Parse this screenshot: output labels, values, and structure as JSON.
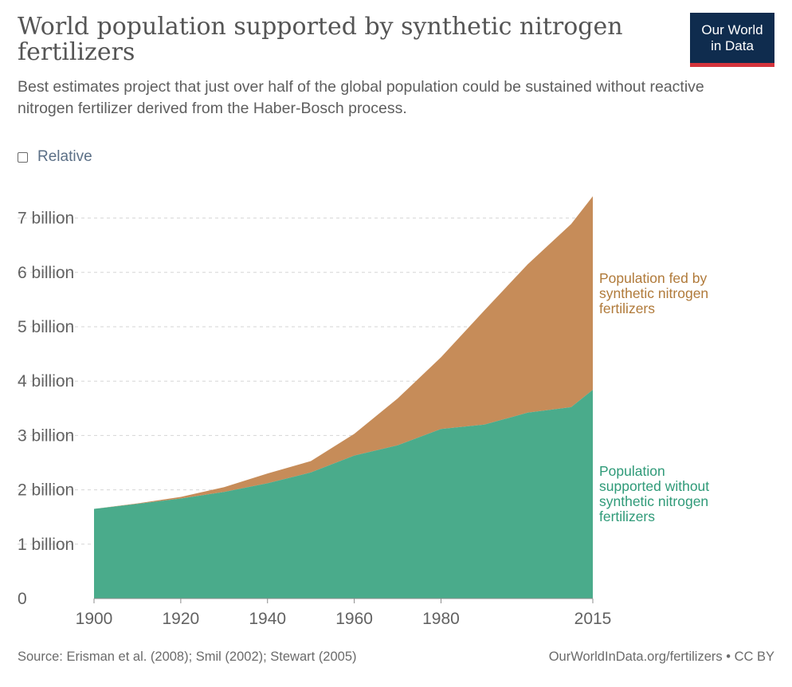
{
  "header": {
    "title": "World population supported by synthetic nitrogen fertilizers",
    "subtitle": "Best estimates project that just over half of the global population could be sustained without reactive nitrogen fertilizer derived from the Haber-Bosch process.",
    "logo_line1": "Our World",
    "logo_line2": "in Data",
    "logo_bg": "#0f2c4e",
    "logo_accent": "#d4343c"
  },
  "controls": {
    "relative_label": "Relative",
    "relative_checked": false
  },
  "footer": {
    "source": "Source: Erisman et al. (2008); Smil (2002); Stewart (2005)",
    "credit": "OurWorldInData.org/fertilizers • CC BY"
  },
  "chart_data": {
    "type": "area",
    "stacked": true,
    "title": "World population supported by synthetic nitrogen fertilizers",
    "subtitle": "Best estimates project that just over half of the global population could be sustained without reactive nitrogen fertilizer derived from the Haber-Bosch process.",
    "x": [
      1900,
      1910,
      1920,
      1930,
      1940,
      1950,
      1960,
      1970,
      1980,
      1990,
      2000,
      2010,
      2015
    ],
    "xlim": [
      1900,
      2015
    ],
    "x_ticks": [
      1900,
      1920,
      1940,
      1960,
      1980,
      2015
    ],
    "x_tick_labels": [
      "1900",
      "1920",
      "1940",
      "1960",
      "1980",
      "2015"
    ],
    "ylim": [
      0,
      7.4
    ],
    "y_ticks": [
      0,
      1,
      2,
      3,
      4,
      5,
      6,
      7
    ],
    "y_tick_labels": [
      "0",
      "1 billion",
      "2 billion",
      "3 billion",
      "4 billion",
      "5 billion",
      "6 billion",
      "7 billion"
    ],
    "grid": "horizontal dashed",
    "legend": "right, inline labels",
    "series": [
      {
        "name": "Population supported without synthetic nitrogen fertilizers",
        "label_lines": [
          "Population",
          "supported without",
          "synthetic nitrogen",
          "fertilizers"
        ],
        "color": "#4aab8b",
        "label_color": "#2f9a78",
        "values": [
          1.65,
          1.74,
          1.84,
          1.96,
          2.12,
          2.32,
          2.63,
          2.82,
          3.12,
          3.2,
          3.42,
          3.52,
          3.84
        ]
      },
      {
        "name": "Population fed by synthetic nitrogen fertilizers",
        "label_lines": [
          "Population fed by",
          "synthetic nitrogen",
          "fertilizers"
        ],
        "color": "#c68c59",
        "label_color": "#b07a3a",
        "values": [
          0.0,
          0.01,
          0.03,
          0.09,
          0.18,
          0.21,
          0.4,
          0.86,
          1.32,
          2.1,
          2.73,
          3.37,
          3.56
        ]
      }
    ],
    "totals": [
      1.65,
      1.75,
      1.87,
      2.05,
      2.3,
      2.53,
      3.03,
      3.68,
      4.44,
      5.3,
      6.15,
      6.89,
      7.4
    ]
  }
}
